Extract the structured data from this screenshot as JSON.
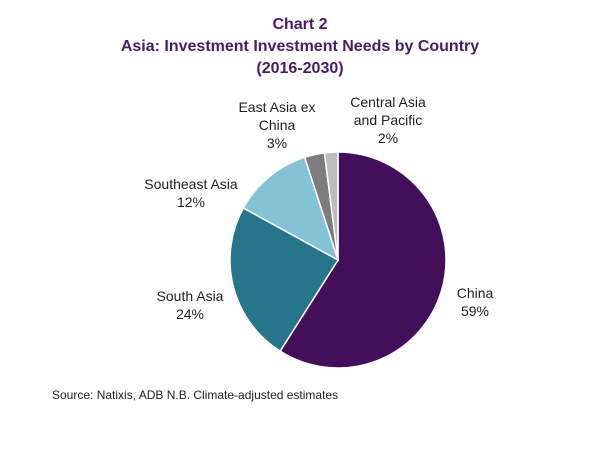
{
  "chart_data": {
    "type": "pie",
    "title_line1": "Chart 2",
    "title_line2": "Asia: Investment Investment Needs by Country",
    "title_line3": "(2016-2030)",
    "slices": [
      {
        "name": "China",
        "label_line1": "China",
        "label_line2": "",
        "value": 59,
        "value_text": "59%",
        "color": "#430f5a"
      },
      {
        "name": "South Asia",
        "label_line1": "South Asia",
        "label_line2": "",
        "value": 24,
        "value_text": "24%",
        "color": "#26758a"
      },
      {
        "name": "Southeast Asia",
        "label_line1": "Southeast Asia",
        "label_line2": "",
        "value": 12,
        "value_text": "12%",
        "color": "#84c3d6"
      },
      {
        "name": "East Asia ex China",
        "label_line1": "East Asia ex",
        "label_line2": "China",
        "value": 3,
        "value_text": "3%",
        "color": "#7d7d7d"
      },
      {
        "name": "Central Asia and Pacific",
        "label_line1": "Central Asia",
        "label_line2": "and Pacific",
        "value": 2,
        "value_text": "2%",
        "color": "#bdbdbd"
      }
    ],
    "source": "Source: Natixis, ADB  N.B. Climate-adjusted estimates"
  }
}
